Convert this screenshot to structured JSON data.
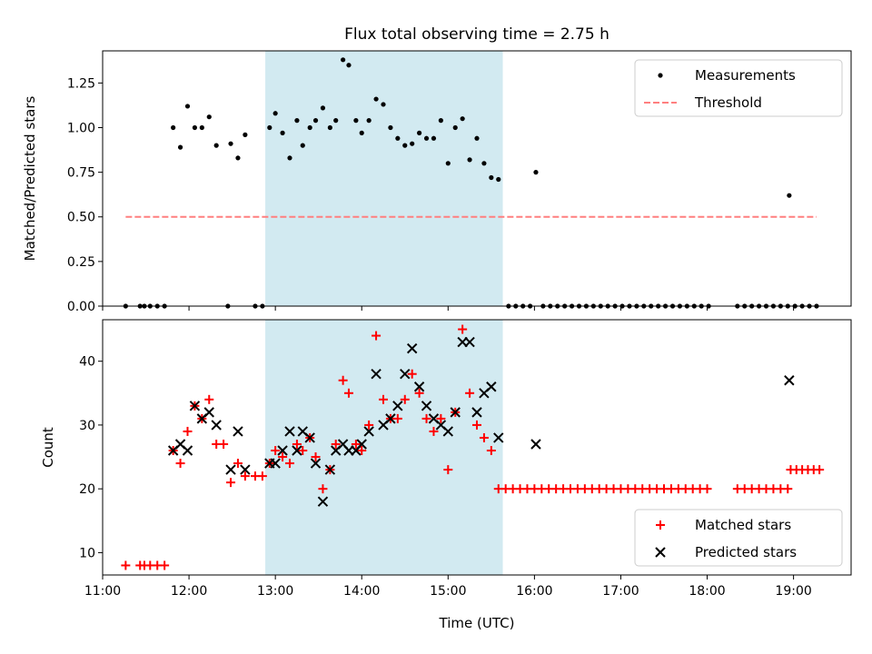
{
  "figure": {
    "title": "Flux total observing time = 2.75 h",
    "shade_color": "#add8e6"
  },
  "chart_data": [
    {
      "type": "scatter",
      "ylabel": "Matched/Predicted stars",
      "xlim": [
        "11:00",
        "19:40"
      ],
      "ylim": [
        0,
        1.43
      ],
      "yticks": [
        0.0,
        0.25,
        0.5,
        0.75,
        1.0,
        1.25
      ],
      "ytick_labels": [
        "0.00",
        "0.25",
        "0.50",
        "0.75",
        "1.00",
        "1.25"
      ],
      "shaded_range": [
        "12:53",
        "15:38"
      ],
      "legend": {
        "position": "top-right"
      },
      "series": [
        {
          "name": "Measurements",
          "marker": "dot",
          "color": "#000000",
          "points": [
            [
              "11:16",
              0
            ],
            [
              "11:26",
              0
            ],
            [
              "11:29",
              0
            ],
            [
              "11:33",
              0
            ],
            [
              "11:38",
              0
            ],
            [
              "11:43",
              0
            ],
            [
              "11:49",
              1.0
            ],
            [
              "11:54",
              0.89
            ],
            [
              "11:59",
              1.12
            ],
            [
              "12:04",
              1.0
            ],
            [
              "12:09",
              1.0
            ],
            [
              "12:14",
              1.06
            ],
            [
              "12:19",
              0.9
            ],
            [
              "12:27",
              0
            ],
            [
              "12:29",
              0.91
            ],
            [
              "12:34",
              0.83
            ],
            [
              "12:39",
              0.96
            ],
            [
              "12:46",
              0
            ],
            [
              "12:51",
              0
            ],
            [
              "12:56",
              1.0
            ],
            [
              "13:00",
              1.08
            ],
            [
              "13:05",
              0.97
            ],
            [
              "13:10",
              0.83
            ],
            [
              "13:15",
              1.04
            ],
            [
              "13:19",
              0.9
            ],
            [
              "13:24",
              1.0
            ],
            [
              "13:28",
              1.04
            ],
            [
              "13:33",
              1.11
            ],
            [
              "13:38",
              1.0
            ],
            [
              "13:42",
              1.04
            ],
            [
              "13:47",
              1.38
            ],
            [
              "13:51",
              1.35
            ],
            [
              "13:56",
              1.04
            ],
            [
              "14:00",
              0.97
            ],
            [
              "14:05",
              1.04
            ],
            [
              "14:10",
              1.16
            ],
            [
              "14:15",
              1.13
            ],
            [
              "14:20",
              1.0
            ],
            [
              "14:25",
              0.94
            ],
            [
              "14:30",
              0.9
            ],
            [
              "14:35",
              0.91
            ],
            [
              "14:40",
              0.97
            ],
            [
              "14:45",
              0.94
            ],
            [
              "14:50",
              0.94
            ],
            [
              "14:55",
              1.04
            ],
            [
              "15:00",
              0.8
            ],
            [
              "15:05",
              1.0
            ],
            [
              "15:10",
              1.05
            ],
            [
              "15:15",
              0.82
            ],
            [
              "15:20",
              0.94
            ],
            [
              "15:25",
              0.8
            ],
            [
              "15:30",
              0.72
            ],
            [
              "15:35",
              0.71
            ],
            [
              "15:42",
              0
            ],
            [
              "15:47",
              0
            ],
            [
              "15:52",
              0
            ],
            [
              "15:57",
              0
            ],
            [
              "16:01",
              0.75
            ],
            [
              "16:06",
              0
            ],
            [
              "16:11",
              0
            ],
            [
              "16:16",
              0
            ],
            [
              "16:21",
              0
            ],
            [
              "16:26",
              0
            ],
            [
              "16:31",
              0
            ],
            [
              "16:36",
              0
            ],
            [
              "16:41",
              0
            ],
            [
              "16:46",
              0
            ],
            [
              "16:51",
              0
            ],
            [
              "16:56",
              0
            ],
            [
              "17:01",
              0
            ],
            [
              "17:06",
              0
            ],
            [
              "17:11",
              0
            ],
            [
              "17:16",
              0
            ],
            [
              "17:21",
              0
            ],
            [
              "17:26",
              0
            ],
            [
              "17:31",
              0
            ],
            [
              "17:36",
              0
            ],
            [
              "17:41",
              0
            ],
            [
              "17:46",
              0
            ],
            [
              "17:51",
              0
            ],
            [
              "17:56",
              0
            ],
            [
              "18:01",
              0
            ],
            [
              "18:21",
              0
            ],
            [
              "18:26",
              0
            ],
            [
              "18:31",
              0
            ],
            [
              "18:36",
              0
            ],
            [
              "18:41",
              0
            ],
            [
              "18:46",
              0
            ],
            [
              "18:51",
              0
            ],
            [
              "18:56",
              0
            ],
            [
              "18:57",
              0.62
            ],
            [
              "19:01",
              0
            ],
            [
              "19:06",
              0
            ],
            [
              "19:11",
              0
            ],
            [
              "19:16",
              0
            ]
          ]
        },
        {
          "name": "Threshold",
          "style": "dashed",
          "color": "#ff7f7f",
          "points": [
            [
              "11:16",
              0.5
            ],
            [
              "19:16",
              0.5
            ]
          ]
        }
      ]
    },
    {
      "type": "scatter",
      "xlabel": "Time (UTC)",
      "ylabel": "Count",
      "xlim": [
        "11:00",
        "19:40"
      ],
      "ylim": [
        6.5,
        46.5
      ],
      "yticks": [
        10,
        20,
        30,
        40
      ],
      "ytick_labels": [
        "10",
        "20",
        "30",
        "40"
      ],
      "xticks": [
        "11:00",
        "12:00",
        "13:00",
        "14:00",
        "15:00",
        "16:00",
        "17:00",
        "18:00",
        "19:00"
      ],
      "shaded_range": [
        "12:53",
        "15:38"
      ],
      "legend": {
        "position": "bottom-right"
      },
      "series": [
        {
          "name": "Matched stars",
          "marker": "plus",
          "color": "#ff0000",
          "points": [
            [
              "11:16",
              8
            ],
            [
              "11:26",
              8
            ],
            [
              "11:29",
              8
            ],
            [
              "11:33",
              8
            ],
            [
              "11:38",
              8
            ],
            [
              "11:43",
              8
            ],
            [
              "11:49",
              26
            ],
            [
              "11:54",
              24
            ],
            [
              "11:59",
              29
            ],
            [
              "12:04",
              33
            ],
            [
              "12:09",
              31
            ],
            [
              "12:14",
              34
            ],
            [
              "12:19",
              27
            ],
            [
              "12:24",
              27
            ],
            [
              "12:29",
              21
            ],
            [
              "12:34",
              24
            ],
            [
              "12:39",
              22
            ],
            [
              "12:46",
              22
            ],
            [
              "12:51",
              22
            ],
            [
              "12:56",
              24
            ],
            [
              "13:00",
              26
            ],
            [
              "13:05",
              25
            ],
            [
              "13:10",
              24
            ],
            [
              "13:15",
              27
            ],
            [
              "13:19",
              26
            ],
            [
              "13:24",
              28
            ],
            [
              "13:28",
              25
            ],
            [
              "13:33",
              20
            ],
            [
              "13:38",
              23
            ],
            [
              "13:42",
              27
            ],
            [
              "13:47",
              37
            ],
            [
              "13:51",
              35
            ],
            [
              "13:56",
              27
            ],
            [
              "14:00",
              26
            ],
            [
              "14:05",
              30
            ],
            [
              "14:10",
              44
            ],
            [
              "14:15",
              34
            ],
            [
              "14:20",
              31
            ],
            [
              "14:25",
              31
            ],
            [
              "14:30",
              34
            ],
            [
              "14:35",
              38
            ],
            [
              "14:40",
              35
            ],
            [
              "14:45",
              31
            ],
            [
              "14:50",
              29
            ],
            [
              "14:55",
              31
            ],
            [
              "15:00",
              23
            ],
            [
              "15:05",
              32
            ],
            [
              "15:10",
              45
            ],
            [
              "15:15",
              35
            ],
            [
              "15:20",
              30
            ],
            [
              "15:25",
              28
            ],
            [
              "15:30",
              26
            ],
            [
              "15:35",
              20
            ],
            [
              "15:40",
              20
            ],
            [
              "15:45",
              20
            ],
            [
              "15:50",
              20
            ],
            [
              "15:55",
              20
            ],
            [
              "16:00",
              20
            ],
            [
              "16:05",
              20
            ],
            [
              "16:10",
              20
            ],
            [
              "16:15",
              20
            ],
            [
              "16:20",
              20
            ],
            [
              "16:25",
              20
            ],
            [
              "16:30",
              20
            ],
            [
              "16:35",
              20
            ],
            [
              "16:40",
              20
            ],
            [
              "16:45",
              20
            ],
            [
              "16:50",
              20
            ],
            [
              "16:55",
              20
            ],
            [
              "17:00",
              20
            ],
            [
              "17:05",
              20
            ],
            [
              "17:10",
              20
            ],
            [
              "17:15",
              20
            ],
            [
              "17:20",
              20
            ],
            [
              "17:25",
              20
            ],
            [
              "17:30",
              20
            ],
            [
              "17:35",
              20
            ],
            [
              "17:40",
              20
            ],
            [
              "17:45",
              20
            ],
            [
              "17:50",
              20
            ],
            [
              "17:55",
              20
            ],
            [
              "18:00",
              20
            ],
            [
              "18:21",
              20
            ],
            [
              "18:26",
              20
            ],
            [
              "18:31",
              20
            ],
            [
              "18:36",
              20
            ],
            [
              "18:41",
              20
            ],
            [
              "18:46",
              20
            ],
            [
              "18:51",
              20
            ],
            [
              "18:56",
              20
            ],
            [
              "18:58",
              23
            ],
            [
              "19:02",
              23
            ],
            [
              "19:06",
              23
            ],
            [
              "19:10",
              23
            ],
            [
              "19:14",
              23
            ],
            [
              "19:18",
              23
            ]
          ]
        },
        {
          "name": "Predicted stars",
          "marker": "x",
          "color": "#000000",
          "points": [
            [
              "11:49",
              26
            ],
            [
              "11:54",
              27
            ],
            [
              "11:59",
              26
            ],
            [
              "12:04",
              33
            ],
            [
              "12:09",
              31
            ],
            [
              "12:14",
              32
            ],
            [
              "12:19",
              30
            ],
            [
              "12:29",
              23
            ],
            [
              "12:34",
              29
            ],
            [
              "12:39",
              23
            ],
            [
              "12:56",
              24
            ],
            [
              "13:00",
              24
            ],
            [
              "13:05",
              26
            ],
            [
              "13:10",
              29
            ],
            [
              "13:15",
              26
            ],
            [
              "13:19",
              29
            ],
            [
              "13:24",
              28
            ],
            [
              "13:28",
              24
            ],
            [
              "13:33",
              18
            ],
            [
              "13:38",
              23
            ],
            [
              "13:42",
              26
            ],
            [
              "13:47",
              27
            ],
            [
              "13:51",
              26
            ],
            [
              "13:56",
              26
            ],
            [
              "14:00",
              27
            ],
            [
              "14:05",
              29
            ],
            [
              "14:10",
              38
            ],
            [
              "14:15",
              30
            ],
            [
              "14:20",
              31
            ],
            [
              "14:25",
              33
            ],
            [
              "14:30",
              38
            ],
            [
              "14:35",
              42
            ],
            [
              "14:40",
              36
            ],
            [
              "14:45",
              33
            ],
            [
              "14:50",
              31
            ],
            [
              "14:55",
              30
            ],
            [
              "15:00",
              29
            ],
            [
              "15:05",
              32
            ],
            [
              "15:10",
              43
            ],
            [
              "15:15",
              43
            ],
            [
              "15:20",
              32
            ],
            [
              "15:25",
              35
            ],
            [
              "15:30",
              36
            ],
            [
              "15:35",
              28
            ],
            [
              "16:01",
              27
            ],
            [
              "18:57",
              37
            ]
          ]
        }
      ]
    }
  ]
}
